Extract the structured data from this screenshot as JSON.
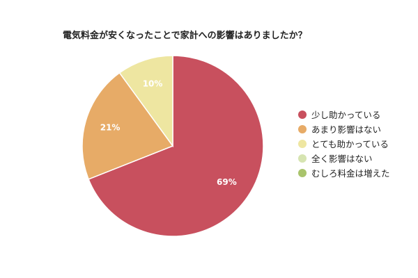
{
  "chart_data": {
    "type": "pie",
    "title": "電気料金が安くなったことで家計への影響はありましたか？",
    "categories": [
      "少し助かっている",
      "あまり影響はない",
      "とても助かっている",
      "全く影響はない",
      "むしろ料金は増えた"
    ],
    "values": [
      69,
      21,
      10,
      0,
      0
    ],
    "value_labels": [
      "69%",
      "21%",
      "10%",
      "",
      ""
    ],
    "colors": [
      "#c8505e",
      "#e7ab67",
      "#eee6a1",
      "#d6e4b1",
      "#a9c46c"
    ],
    "legend_position": "right"
  }
}
